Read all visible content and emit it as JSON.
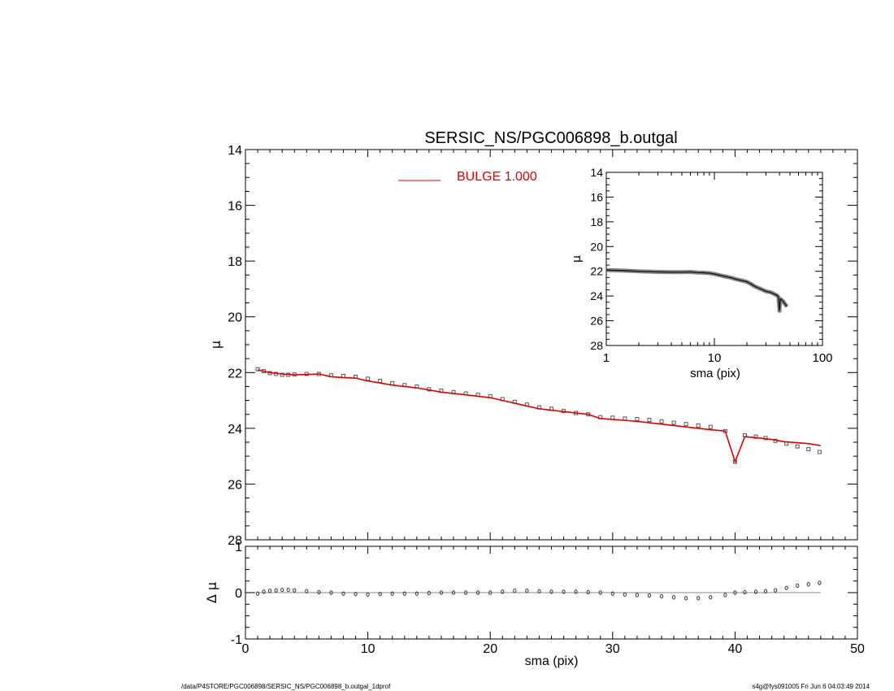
{
  "footer": {
    "path": "/data/P4STORE/PGC006898/SERSIC_NS/PGC006898_b.outgal_1dprof",
    "stamp": "s4g@fys091005  Fri Jun  6 04:03:49 2014"
  },
  "colors": {
    "model": "#dd0000",
    "data": "#555555",
    "axes": "#000000"
  },
  "chart_data": [
    {
      "type": "line",
      "title": "SERSIC_NS/PGC006898_b.outgal",
      "xlabel": "",
      "ylabel": "μ",
      "xlim": [
        0,
        50
      ],
      "ylim": [
        28,
        14
      ],
      "y_inverted": true,
      "yticks": [
        14,
        16,
        18,
        20,
        22,
        24,
        26,
        28
      ],
      "legend": {
        "entries": [
          "BULGE  1.000"
        ],
        "placement": "top-center"
      },
      "series": [
        {
          "name": "BULGE  1.000",
          "kind": "line",
          "x": [
            1.0,
            2.0,
            3.0,
            4.0,
            5.0,
            6.0,
            7.0,
            8.0,
            9.0,
            10.0,
            12.0,
            14.0,
            16.0,
            18.0,
            20.0,
            22.0,
            24.0,
            26.0,
            28.0,
            29.0,
            32.0,
            34.0,
            36.0,
            38.0,
            39.2,
            40.0,
            40.8,
            42.0,
            43.0,
            44.0,
            46.0,
            47.0
          ],
          "y": [
            21.9,
            22.0,
            22.05,
            22.08,
            22.07,
            22.05,
            22.15,
            22.18,
            22.2,
            22.3,
            22.45,
            22.55,
            22.7,
            22.8,
            22.9,
            23.1,
            23.3,
            23.4,
            23.5,
            23.65,
            23.75,
            23.85,
            23.95,
            24.05,
            24.1,
            25.2,
            24.3,
            24.35,
            24.4,
            24.48,
            24.55,
            24.62
          ]
        },
        {
          "name": "",
          "kind": "markers",
          "x": [
            1.0,
            1.5,
            2.0,
            2.5,
            3.0,
            3.5,
            4.0,
            5.0,
            6.0,
            7.0,
            8.0,
            9.0,
            10.0,
            11.0,
            12.0,
            13.0,
            14.0,
            15.0,
            16.0,
            17.0,
            18.0,
            19.0,
            20.0,
            21.0,
            22.0,
            23.0,
            24.0,
            25.0,
            26.0,
            27.0,
            28.0,
            29.0,
            30.0,
            31.0,
            32.0,
            33.0,
            34.0,
            35.0,
            36.0,
            37.0,
            38.0,
            39.2,
            40.0,
            40.8,
            41.7,
            42.5,
            43.3,
            44.2,
            45.1,
            46.0,
            46.9
          ],
          "y": [
            21.88,
            21.95,
            22.02,
            22.05,
            22.08,
            22.08,
            22.07,
            22.05,
            22.05,
            22.1,
            22.12,
            22.15,
            22.22,
            22.3,
            22.38,
            22.45,
            22.5,
            22.6,
            22.65,
            22.7,
            22.75,
            22.8,
            22.85,
            22.95,
            23.05,
            23.15,
            23.25,
            23.3,
            23.38,
            23.45,
            23.5,
            23.6,
            23.62,
            23.65,
            23.67,
            23.7,
            23.75,
            23.8,
            23.85,
            23.9,
            23.95,
            24.1,
            25.2,
            24.25,
            24.3,
            24.35,
            24.45,
            24.55,
            24.65,
            24.75,
            24.85
          ]
        }
      ]
    },
    {
      "type": "scatter",
      "title": "",
      "xlabel": "sma (pix)",
      "ylabel": "Δ μ",
      "xlim": [
        0,
        50
      ],
      "ylim": [
        -1,
        1
      ],
      "xticks": [
        0,
        10,
        20,
        30,
        40,
        50
      ],
      "yticks": [
        -1,
        0,
        1
      ],
      "reference_line": 0,
      "series": [
        {
          "name": "",
          "x": [
            1.0,
            1.5,
            2.0,
            2.5,
            3.0,
            3.5,
            4.0,
            5.0,
            6.0,
            7.0,
            8.0,
            9.0,
            10.0,
            11.0,
            12.0,
            13.0,
            14.0,
            15.0,
            16.0,
            17.0,
            18.0,
            19.0,
            20.0,
            21.0,
            22.0,
            23.0,
            24.0,
            25.0,
            26.0,
            27.0,
            28.0,
            29.0,
            30.0,
            31.0,
            32.0,
            33.0,
            34.0,
            35.0,
            36.0,
            37.0,
            38.0,
            39.2,
            40.0,
            40.8,
            41.7,
            42.5,
            43.3,
            44.2,
            45.1,
            46.0,
            46.9
          ],
          "y": [
            -0.02,
            0.02,
            0.04,
            0.05,
            0.06,
            0.06,
            0.05,
            0.03,
            0.01,
            0.0,
            -0.02,
            -0.03,
            -0.04,
            -0.03,
            -0.02,
            -0.02,
            -0.02,
            -0.01,
            0.0,
            0.0,
            0.0,
            0.0,
            0.0,
            0.02,
            0.04,
            0.04,
            0.03,
            0.02,
            0.02,
            0.02,
            0.01,
            0.0,
            -0.02,
            -0.04,
            -0.05,
            -0.06,
            -0.08,
            -0.1,
            -0.12,
            -0.12,
            -0.1,
            -0.05,
            0.0,
            0.01,
            0.02,
            0.03,
            0.05,
            0.1,
            0.15,
            0.18,
            0.21
          ]
        }
      ]
    },
    {
      "type": "line",
      "title": "",
      "xlabel": "sma (pix)",
      "ylabel": "μ",
      "x_scale": "log",
      "xlim": [
        1,
        100
      ],
      "ylim": [
        28,
        14
      ],
      "y_inverted": true,
      "xticks": [
        1,
        10,
        100
      ],
      "yticks": [
        14,
        16,
        18,
        20,
        22,
        24,
        26,
        28
      ],
      "series": [
        {
          "name": "",
          "x": [
            1.0,
            1.5,
            2.0,
            3.0,
            4.0,
            5.0,
            6.0,
            7.0,
            8.0,
            9.0,
            10.0,
            12.0,
            14.0,
            16.0,
            18.0,
            20.0,
            22.0,
            24.0,
            26.0,
            28.0,
            30.0,
            33.0,
            36.0,
            38.0,
            39.2,
            40.0,
            40.8,
            42.5,
            44.2,
            46.0,
            46.9
          ],
          "y": [
            21.9,
            21.95,
            22.0,
            22.05,
            22.07,
            22.07,
            22.05,
            22.1,
            22.12,
            22.15,
            22.22,
            22.38,
            22.5,
            22.65,
            22.75,
            22.85,
            23.05,
            23.25,
            23.38,
            23.5,
            23.62,
            23.7,
            23.85,
            23.95,
            24.1,
            25.2,
            24.25,
            24.35,
            24.55,
            24.75,
            24.85
          ]
        }
      ]
    }
  ]
}
